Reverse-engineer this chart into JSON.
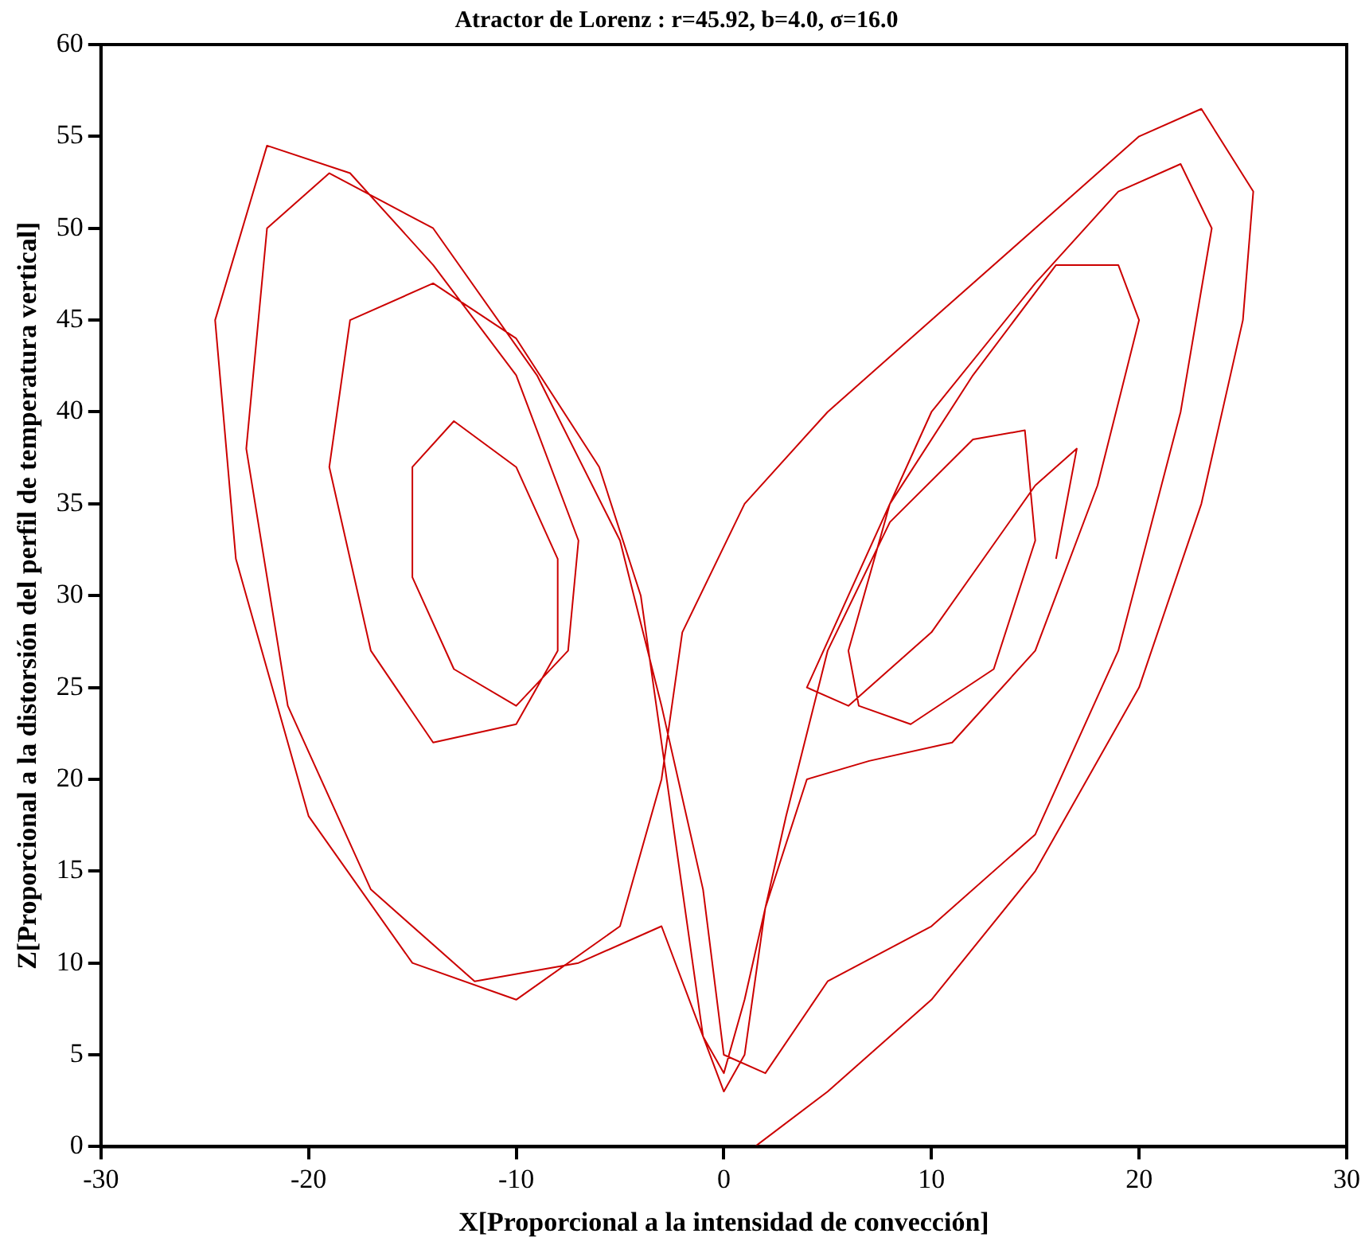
{
  "chart_data": {
    "type": "line",
    "title": "Atractor de Lorenz : r=45.92, b=4.0, σ=16.0",
    "xlabel": "X[Proporcional a la intensidad de convección]",
    "ylabel": "Z[Proporcional a la distorsión del perfil de temperatura vertical]",
    "xlim": [
      -30,
      30
    ],
    "xticks": [
      -30,
      -20,
      -10,
      0,
      10,
      20,
      30
    ],
    "ylim": [
      0,
      60
    ],
    "yticks": [
      0,
      5,
      10,
      15,
      20,
      25,
      30,
      35,
      40,
      45,
      50,
      55,
      60
    ],
    "grid": false,
    "legend": false,
    "marker": "none",
    "line_style": "solid",
    "series": [
      {
        "color": "#cc0000",
        "x": [
          1.5,
          5,
          10,
          15,
          20,
          23,
          25,
          25.5,
          23,
          20,
          15,
          10,
          5,
          1,
          -2,
          -3,
          -5,
          -10,
          -15,
          -20,
          -23.5,
          -24.5,
          -22,
          -18,
          -14,
          -10,
          -7,
          -7.5,
          -10,
          -13,
          -15,
          -15,
          -13,
          -10,
          -8,
          -8,
          -10,
          -14,
          -17,
          -19,
          -18,
          -14,
          -10,
          -6,
          -4,
          -3,
          -2,
          -1,
          0,
          1,
          2,
          4,
          7,
          11,
          15,
          18,
          20,
          19,
          16,
          12,
          8,
          6,
          6.5,
          9,
          13,
          15,
          14.5,
          12,
          8,
          5,
          3,
          1,
          0,
          -1,
          -3,
          -7,
          -12,
          -17,
          -21,
          -23,
          -22,
          -19,
          -14,
          -9,
          -5,
          -3,
          -1,
          0,
          2,
          5,
          10,
          15,
          19,
          22,
          23.5,
          22,
          19,
          15,
          10,
          6,
          4,
          6,
          10,
          15,
          17,
          16
        ],
        "values": [
          0,
          3,
          8,
          15,
          25,
          35,
          45,
          52,
          56.5,
          55,
          50,
          45,
          40,
          35,
          28,
          20,
          12,
          8,
          10,
          18,
          32,
          45,
          54.5,
          53,
          48,
          42,
          33,
          27,
          24,
          26,
          31,
          37,
          39.5,
          37,
          32,
          27,
          23,
          22,
          27,
          37,
          45,
          47,
          44,
          37,
          30,
          22,
          14,
          6,
          3,
          5,
          13,
          20,
          21,
          22,
          27,
          36,
          45,
          48,
          48,
          42,
          35,
          27,
          24,
          23,
          26,
          33,
          39,
          38.5,
          34,
          27,
          18,
          8,
          4,
          6,
          12,
          10,
          9,
          14,
          24,
          38,
          50,
          53,
          50,
          42,
          33,
          24,
          14,
          5,
          4,
          9,
          12,
          17,
          27,
          40,
          50,
          53.5,
          52,
          47,
          40,
          30,
          25,
          24,
          28,
          36,
          38,
          32
        ]
      }
    ]
  }
}
